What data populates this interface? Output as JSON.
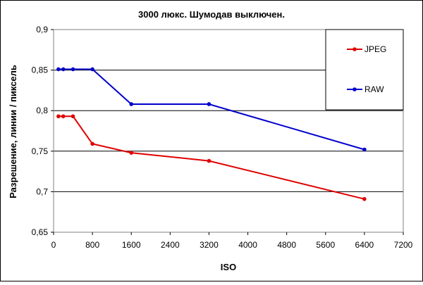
{
  "chart_data": {
    "type": "line",
    "title": "3000 люкс. Шумодав выключен.",
    "xlabel": "ISO",
    "ylabel": "Разрешение, линии / пиксель",
    "xlim": [
      0,
      7200
    ],
    "ylim": [
      0.65,
      0.9
    ],
    "x_ticks": [
      0,
      800,
      1600,
      2400,
      3200,
      4000,
      4800,
      5600,
      6400,
      7200
    ],
    "x_tick_labels": [
      "0",
      "800",
      "1600",
      "2400",
      "3200",
      "4000",
      "4800",
      "5600",
      "6400",
      "7200"
    ],
    "y_ticks": [
      0.65,
      0.7,
      0.75,
      0.8,
      0.85,
      0.9
    ],
    "y_tick_labels": [
      "0,65",
      "0,7",
      "0,75",
      "0,8",
      "0,85",
      "0,9"
    ],
    "grid": "horizontal",
    "legend_position": "top-right",
    "series": [
      {
        "name": "JPEG",
        "color": "#e00000",
        "x": [
          100,
          200,
          400,
          800,
          1600,
          3200,
          6400
        ],
        "y": [
          0.793,
          0.793,
          0.793,
          0.759,
          0.748,
          0.738,
          0.691
        ]
      },
      {
        "name": "RAW",
        "color": "#0000cc",
        "x": [
          100,
          200,
          400,
          800,
          1600,
          3200,
          6400
        ],
        "y": [
          0.851,
          0.851,
          0.851,
          0.851,
          0.808,
          0.808,
          0.752
        ]
      }
    ]
  }
}
